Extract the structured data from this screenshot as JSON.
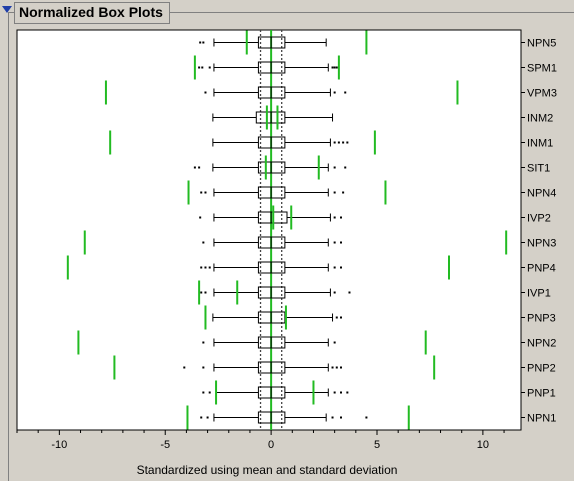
{
  "panel": {
    "title": "Normalized Box Plots",
    "disclosure_icon": "disclosure-triangle-down-icon"
  },
  "chart_data": {
    "type": "box",
    "orientation": "horizontal",
    "xlabel": "Standardized using mean and standard deviation",
    "ylabel": "",
    "xlim": [
      -12,
      11.8
    ],
    "xticks": [
      -10,
      -5,
      0,
      5,
      10
    ],
    "xtick_labels": [
      "-10",
      "-5",
      "0",
      "5",
      "10"
    ],
    "reference_lines": [
      -0.5,
      0.5
    ],
    "center_line": 0,
    "colors": {
      "box": "#000000",
      "spec_limits": "#22bb22",
      "reference": "#444444",
      "background": "#ffffff"
    },
    "series": [
      {
        "name": "NPN5",
        "q1": -0.6,
        "median": 0.0,
        "q3": 0.65,
        "whisker_low": -2.7,
        "whisker_high": 2.6,
        "outliers": [
          -3.35,
          -3.2
        ],
        "spec_limits": [
          -1.15,
          4.5
        ]
      },
      {
        "name": "SPM1",
        "q1": -0.6,
        "median": 0.0,
        "q3": 0.65,
        "whisker_low": -2.7,
        "whisker_high": 2.7,
        "outliers": [
          -3.4,
          -3.25,
          -2.9,
          2.9,
          3.0,
          3.1
        ],
        "spec_limits": [
          -3.6,
          3.2
        ]
      },
      {
        "name": "VPM3",
        "q1": -0.6,
        "median": 0.0,
        "q3": 0.65,
        "whisker_low": -2.7,
        "whisker_high": 2.8,
        "outliers": [
          -3.1,
          3.0,
          3.5
        ],
        "spec_limits": [
          -7.8,
          8.8
        ]
      },
      {
        "name": "INM2",
        "q1": -0.7,
        "median": 0.0,
        "q3": 0.65,
        "whisker_low": -2.75,
        "whisker_high": 2.9,
        "outliers": [],
        "spec_limits": [
          -0.2,
          0.3
        ]
      },
      {
        "name": "INM1",
        "q1": -0.6,
        "median": 0.0,
        "q3": 0.65,
        "whisker_low": -2.75,
        "whisker_high": 2.8,
        "outliers": [
          3.0,
          3.2,
          3.4,
          3.6
        ],
        "spec_limits": [
          -7.6,
          4.9
        ]
      },
      {
        "name": "SIT1",
        "q1": -0.6,
        "median": 0.0,
        "q3": 0.65,
        "whisker_low": -2.75,
        "whisker_high": 2.7,
        "outliers": [
          -3.6,
          -3.4,
          3.0,
          3.5
        ],
        "spec_limits": [
          -0.25,
          2.25
        ]
      },
      {
        "name": "NPN4",
        "q1": -0.6,
        "median": 0.0,
        "q3": 0.65,
        "whisker_low": -2.7,
        "whisker_high": 2.7,
        "outliers": [
          -3.3,
          -3.1,
          3.0,
          3.4
        ],
        "spec_limits": [
          -3.9,
          5.4
        ]
      },
      {
        "name": "IVP2",
        "q1": -0.6,
        "median": 0.0,
        "q3": 0.75,
        "whisker_low": -2.7,
        "whisker_high": 2.8,
        "outliers": [
          -3.35,
          3.0,
          3.3
        ],
        "spec_limits": [
          0.1,
          0.95
        ]
      },
      {
        "name": "NPN3",
        "q1": -0.6,
        "median": 0.0,
        "q3": 0.65,
        "whisker_low": -2.7,
        "whisker_high": 2.7,
        "outliers": [
          -3.2,
          3.0,
          3.3
        ],
        "spec_limits": [
          -8.8,
          11.1
        ]
      },
      {
        "name": "PNP4",
        "q1": -0.6,
        "median": 0.0,
        "q3": 0.65,
        "whisker_low": -2.7,
        "whisker_high": 2.7,
        "outliers": [
          -3.3,
          -3.1,
          -2.9,
          3.0,
          3.3
        ],
        "spec_limits": [
          -9.6,
          8.4
        ]
      },
      {
        "name": "IVP1",
        "q1": -0.6,
        "median": 0.0,
        "q3": 0.65,
        "whisker_low": -2.7,
        "whisker_high": 2.8,
        "outliers": [
          -3.3,
          -3.1,
          3.0,
          3.7
        ],
        "spec_limits": [
          -3.4,
          -1.6
        ]
      },
      {
        "name": "PNP3",
        "q1": -0.6,
        "median": 0.0,
        "q3": 0.65,
        "whisker_low": -2.75,
        "whisker_high": 2.9,
        "outliers": [
          3.1,
          3.3
        ],
        "spec_limits": [
          -3.1,
          0.7
        ]
      },
      {
        "name": "NPN2",
        "q1": -0.6,
        "median": 0.0,
        "q3": 0.65,
        "whisker_low": -2.7,
        "whisker_high": 2.7,
        "outliers": [
          -3.2,
          3.0
        ],
        "spec_limits": [
          -9.1,
          7.3
        ]
      },
      {
        "name": "PNP2",
        "q1": -0.6,
        "median": 0.0,
        "q3": 0.65,
        "whisker_low": -2.7,
        "whisker_high": 2.7,
        "outliers": [
          -4.1,
          -3.2,
          2.9,
          3.1,
          3.3
        ],
        "spec_limits": [
          -7.4,
          7.7
        ]
      },
      {
        "name": "PNP1",
        "q1": -0.6,
        "median": 0.0,
        "q3": 0.65,
        "whisker_low": -2.6,
        "whisker_high": 2.7,
        "outliers": [
          -3.2,
          -2.9,
          3.0,
          3.3,
          3.6
        ],
        "spec_limits": [
          -2.6,
          2.0
        ]
      },
      {
        "name": "NPN1",
        "q1": -0.6,
        "median": 0.0,
        "q3": 0.65,
        "whisker_low": -2.7,
        "whisker_high": 2.6,
        "outliers": [
          -3.3,
          -3.0,
          2.9,
          3.3,
          4.5
        ],
        "spec_limits": [
          -3.95,
          6.5
        ]
      }
    ]
  }
}
